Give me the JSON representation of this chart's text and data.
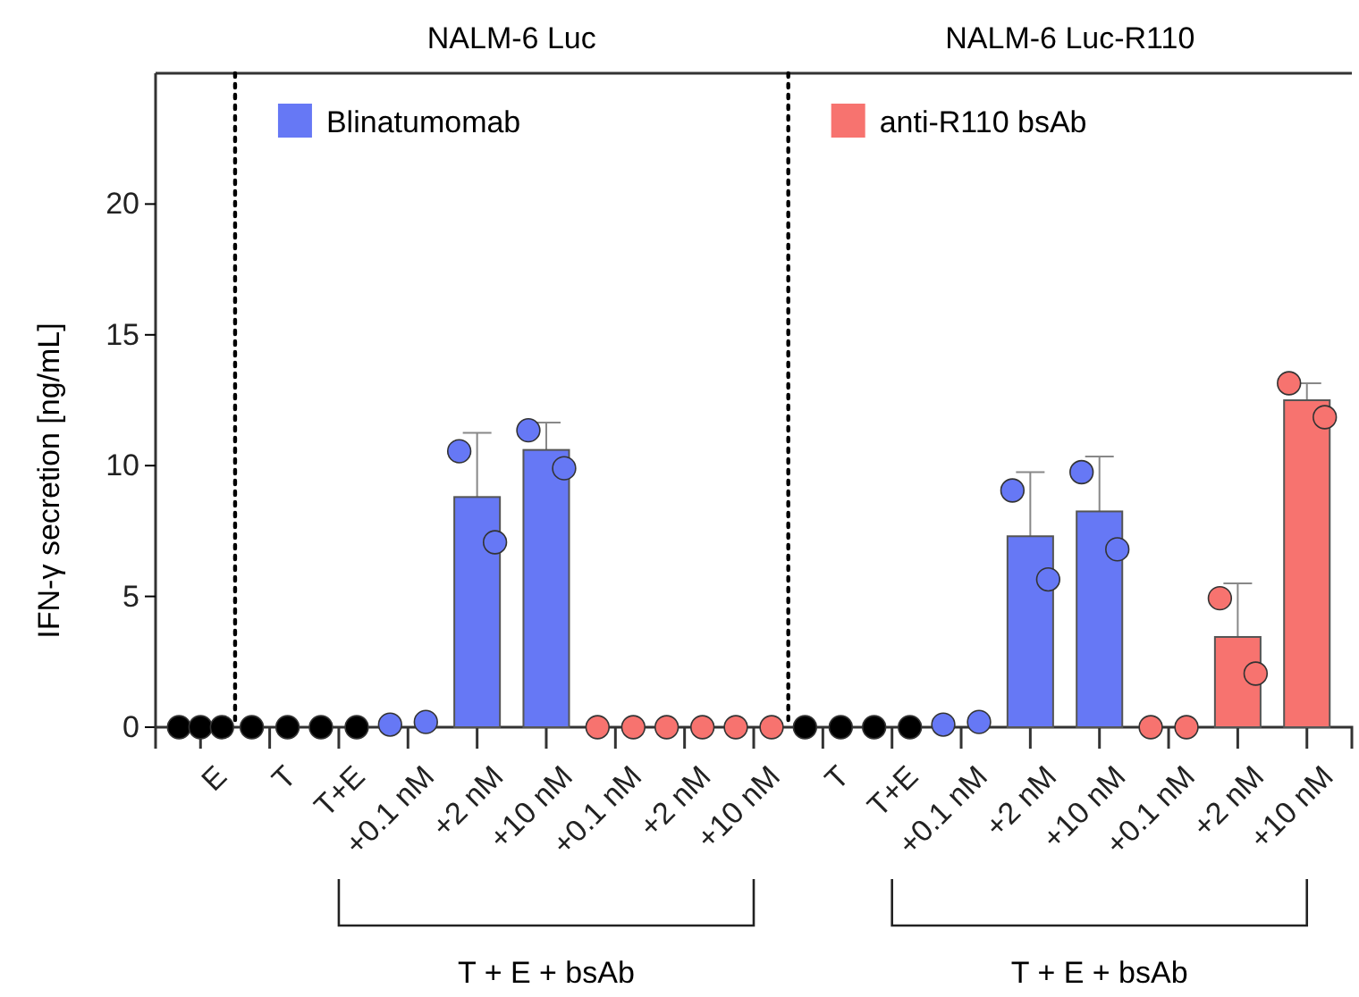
{
  "chart_data": {
    "type": "bar",
    "ylabel": "IFN-γ secretion [ng/mL]",
    "categories": [
      "E",
      "T",
      "T+E",
      "+0.1 nM",
      "+2 nM",
      "+10 nM",
      "+0.1 nM",
      "+2 nM",
      "+10 nM",
      "T",
      "T+E",
      "+0.1 nM",
      "+2 nM",
      "+10 nM",
      "+0.1 nM",
      "+2 nM",
      "+10 nM"
    ],
    "series": [
      {
        "name": "Blinatumomab",
        "color": "#6678f5",
        "values": [
          null,
          null,
          null,
          null,
          8.8,
          10.6,
          null,
          null,
          null,
          null,
          null,
          null,
          7.3,
          8.25,
          null,
          null,
          null
        ],
        "errors": [
          null,
          null,
          null,
          null,
          [
            8.8,
            11.25
          ],
          [
            10.6,
            11.65
          ],
          null,
          null,
          null,
          null,
          null,
          null,
          [
            7.3,
            9.75
          ],
          [
            8.25,
            10.35
          ],
          null,
          null,
          null
        ]
      },
      {
        "name": "anti-R110 bsAb",
        "color": "#f7736f",
        "values": [
          null,
          null,
          null,
          null,
          null,
          null,
          0,
          0,
          0,
          null,
          null,
          null,
          null,
          null,
          0,
          3.45,
          12.5
        ],
        "errors": [
          null,
          null,
          null,
          null,
          null,
          null,
          null,
          null,
          null,
          null,
          null,
          null,
          null,
          null,
          null,
          [
            3.45,
            5.5
          ],
          [
            12.5,
            13.15
          ]
        ]
      },
      {
        "type": "scatter",
        "colors": [
          "#000000",
          "#000000",
          "#000000",
          "#6678f5",
          "#6678f5",
          "#6678f5",
          "#f7736f",
          "#f7736f",
          "#f7736f",
          "#000000",
          "#000000",
          "#6678f5",
          "#6678f5",
          "#6678f5",
          "#f7736f",
          "#f7736f",
          "#f7736f"
        ],
        "values": [
          0,
          0,
          0,
          0.1,
          10.55,
          11.35,
          0,
          0,
          0,
          0,
          0,
          0.1,
          9.05,
          9.75,
          0,
          4.93,
          13.15
        ]
      },
      {
        "type": "scatter",
        "colors": [
          "#000000",
          "#000000",
          "#000000",
          "#6678f5",
          "#6678f5",
          "#6678f5",
          "#f7736f",
          "#f7736f",
          "#f7736f",
          "#000000",
          "#000000",
          "#6678f5",
          "#6678f5",
          "#6678f5",
          "#f7736f",
          "#f7736f",
          "#f7736f"
        ],
        "values": [
          0,
          0,
          0,
          0.2,
          7.07,
          9.9,
          0,
          0,
          0,
          0,
          0,
          0.2,
          5.65,
          6.8,
          0,
          2.05,
          11.85
        ]
      },
      {
        "type": "scatter",
        "colors": [
          "#000000",
          null,
          null,
          null,
          null,
          null,
          null,
          null,
          null,
          null,
          null,
          null,
          null,
          null,
          null,
          null,
          null
        ],
        "values": [
          0,
          null,
          null,
          null,
          null,
          null,
          null,
          null,
          null,
          null,
          null,
          null,
          null,
          null,
          null,
          null,
          null
        ]
      }
    ],
    "ylim": [
      0,
      25
    ],
    "yticks": [
      0,
      5,
      10,
      15,
      20
    ],
    "annotations": [
      "NALM-6 Luc",
      "NALM-6 Luc-R110",
      "T + E + bsAb",
      "T + E + bsAb"
    ],
    "legend": "top left",
    "marker": "circle",
    "grid": false
  }
}
